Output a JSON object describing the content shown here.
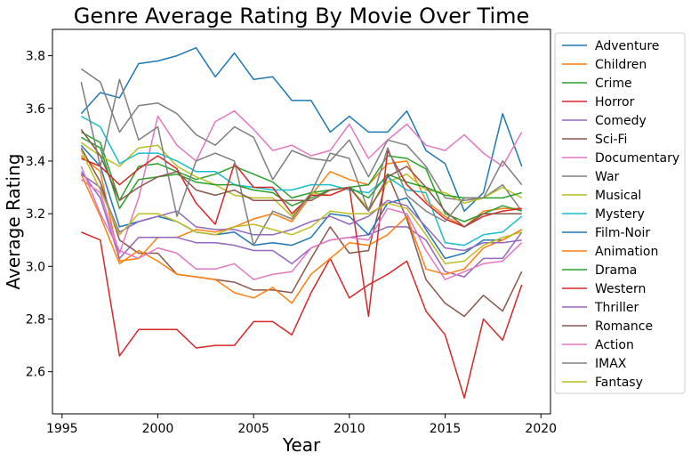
{
  "chart_data": {
    "type": "line",
    "title": "Genre Average Rating By Movie Over Time",
    "xlabel": "Year",
    "ylabel": "Average Rating",
    "xlim": [
      1994.5,
      2020.5
    ],
    "ylim": [
      2.44,
      3.9
    ],
    "xticks": [
      1995,
      2000,
      2005,
      2010,
      2015,
      2020
    ],
    "yticks": [
      2.6,
      2.8,
      3.0,
      3.2,
      3.4,
      3.6,
      3.8
    ],
    "xtick_labels": [
      "1995",
      "2000",
      "2005",
      "2010",
      "2015",
      "2020"
    ],
    "ytick_labels": [
      "2.6",
      "2.8",
      "3.0",
      "3.2",
      "3.4",
      "3.6",
      "3.8"
    ],
    "grid": false,
    "legend_position": "right-outside",
    "x": [
      1996,
      1997,
      1998,
      1999,
      2000,
      2001,
      2002,
      2003,
      2004,
      2005,
      2006,
      2007,
      2008,
      2009,
      2010,
      2011,
      2012,
      2013,
      2014,
      2015,
      2016,
      2017,
      2018,
      2019
    ],
    "series": [
      {
        "name": "Adventure",
        "color": "#1f77b4",
        "values": [
          3.58,
          3.66,
          3.64,
          3.77,
          3.78,
          3.8,
          3.83,
          3.72,
          3.81,
          3.71,
          3.72,
          3.63,
          3.63,
          3.51,
          3.57,
          3.51,
          3.51,
          3.59,
          3.44,
          3.39,
          3.21,
          3.28,
          3.58,
          3.38
        ]
      },
      {
        "name": "Children",
        "color": "#ff7f0e",
        "values": [
          3.42,
          3.36,
          3.02,
          3.03,
          3.11,
          3.11,
          3.14,
          3.13,
          3.15,
          3.18,
          3.2,
          3.17,
          3.27,
          3.36,
          3.33,
          3.31,
          3.39,
          3.4,
          3.25,
          3.19,
          3.15,
          3.21,
          3.22,
          3.22
        ]
      },
      {
        "name": "Crime",
        "color": "#2ca02c",
        "values": [
          3.51,
          3.47,
          3.25,
          3.38,
          3.39,
          3.36,
          3.33,
          3.35,
          3.38,
          3.35,
          3.32,
          3.26,
          3.28,
          3.29,
          3.3,
          3.31,
          3.42,
          3.41,
          3.37,
          3.2,
          3.17,
          3.2,
          3.23,
          3.21
        ]
      },
      {
        "name": "Horror",
        "color": "#d62728",
        "values": [
          3.13,
          3.1,
          2.66,
          2.76,
          2.76,
          2.76,
          2.69,
          2.7,
          2.7,
          2.79,
          2.79,
          2.74,
          2.9,
          3.03,
          2.88,
          2.93,
          2.97,
          3.02,
          2.83,
          2.74,
          2.5,
          2.8,
          2.72,
          2.93
        ]
      },
      {
        "name": "Comedy",
        "color": "#9467bd",
        "values": [
          3.36,
          3.26,
          3.03,
          3.11,
          3.11,
          3.11,
          3.09,
          3.09,
          3.08,
          3.06,
          3.06,
          3.01,
          3.07,
          3.1,
          3.11,
          3.12,
          3.15,
          3.15,
          3.1,
          2.98,
          2.96,
          3.03,
          3.03,
          3.13
        ]
      },
      {
        "name": "Sci-Fi",
        "color": "#8c564b",
        "values": [
          3.45,
          3.32,
          3.1,
          3.05,
          3.05,
          2.97,
          2.96,
          2.95,
          2.94,
          2.91,
          2.91,
          2.9,
          3.03,
          3.15,
          3.05,
          3.06,
          3.35,
          3.18,
          2.95,
          2.86,
          2.81,
          2.89,
          2.83,
          2.98
        ]
      },
      {
        "name": "Documentary",
        "color": "#e377c2",
        "values": [
          3.33,
          3.28,
          3.05,
          3.26,
          3.57,
          3.46,
          3.4,
          3.55,
          3.59,
          3.52,
          3.44,
          3.46,
          3.42,
          3.44,
          3.54,
          3.41,
          3.48,
          3.54,
          3.46,
          3.44,
          3.5,
          3.43,
          3.38,
          3.51
        ]
      },
      {
        "name": "War",
        "color": "#7f7f7f",
        "values": [
          3.75,
          3.7,
          3.51,
          3.61,
          3.62,
          3.58,
          3.5,
          3.46,
          3.53,
          3.49,
          3.33,
          3.44,
          3.41,
          3.4,
          3.48,
          3.34,
          3.48,
          3.46,
          3.38,
          3.26,
          3.25,
          3.26,
          3.31,
          3.21
        ]
      },
      {
        "name": "Musical",
        "color": "#bcbd22",
        "values": [
          3.47,
          3.42,
          3.38,
          3.45,
          3.46,
          3.38,
          3.34,
          3.31,
          3.27,
          3.26,
          3.26,
          3.19,
          3.28,
          3.27,
          3.3,
          3.22,
          3.32,
          3.35,
          3.29,
          3.28,
          3.24,
          3.26,
          3.3,
          3.26
        ]
      },
      {
        "name": "Mystery",
        "color": "#17becf",
        "values": [
          3.57,
          3.53,
          3.39,
          3.43,
          3.43,
          3.4,
          3.36,
          3.36,
          3.31,
          3.3,
          3.29,
          3.29,
          3.31,
          3.31,
          3.29,
          3.28,
          3.34,
          3.29,
          3.28,
          3.09,
          3.08,
          3.12,
          3.13,
          3.19
        ]
      },
      {
        "name": "Film-Noir",
        "color": "#1f77b4",
        "values": [
          3.46,
          3.38,
          3.15,
          3.17,
          3.19,
          3.17,
          3.13,
          3.12,
          3.13,
          3.08,
          3.09,
          3.08,
          3.11,
          3.2,
          3.19,
          3.12,
          3.24,
          3.26,
          3.14,
          3.03,
          3.05,
          3.1,
          3.1,
          3.14
        ]
      },
      {
        "name": "Animation",
        "color": "#ff7f0e",
        "values": [
          3.35,
          3.19,
          3.01,
          3.06,
          3.02,
          2.97,
          2.96,
          2.95,
          2.9,
          2.88,
          2.92,
          2.86,
          2.97,
          3.03,
          3.09,
          3.08,
          3.12,
          3.19,
          2.99,
          2.97,
          2.99,
          3.07,
          3.1,
          3.14
        ]
      },
      {
        "name": "Drama",
        "color": "#2ca02c",
        "values": [
          3.49,
          3.45,
          3.22,
          3.33,
          3.34,
          3.35,
          3.32,
          3.31,
          3.31,
          3.29,
          3.28,
          3.23,
          3.26,
          3.29,
          3.3,
          3.26,
          3.35,
          3.32,
          3.3,
          3.27,
          3.26,
          3.26,
          3.26,
          3.28
        ]
      },
      {
        "name": "Western",
        "color": "#d62728",
        "values": [
          3.41,
          3.38,
          3.31,
          3.37,
          3.42,
          3.37,
          3.24,
          3.16,
          3.39,
          3.3,
          3.3,
          3.2,
          3.27,
          3.27,
          3.3,
          2.81,
          3.44,
          3.31,
          3.24,
          3.18,
          3.15,
          3.19,
          3.21,
          3.22
        ]
      },
      {
        "name": "Thriller",
        "color": "#9467bd",
        "values": [
          3.35,
          3.3,
          3.13,
          3.17,
          3.19,
          3.21,
          3.15,
          3.14,
          3.14,
          3.12,
          3.12,
          3.14,
          3.17,
          3.19,
          3.16,
          3.19,
          3.25,
          3.23,
          3.15,
          3.07,
          3.06,
          3.09,
          3.09,
          3.1
        ]
      },
      {
        "name": "Romance",
        "color": "#8c564b",
        "values": [
          3.52,
          3.42,
          3.25,
          3.3,
          3.34,
          3.36,
          3.29,
          3.27,
          3.29,
          3.25,
          3.25,
          3.25,
          3.25,
          3.29,
          3.3,
          3.21,
          3.34,
          3.38,
          3.3,
          3.21,
          3.15,
          3.2,
          3.2,
          3.2
        ]
      },
      {
        "name": "Action",
        "color": "#e377c2",
        "values": [
          3.38,
          3.2,
          3.06,
          3.03,
          3.07,
          3.05,
          2.99,
          2.99,
          3.01,
          2.95,
          2.97,
          2.98,
          3.07,
          3.1,
          3.11,
          3.1,
          3.22,
          3.2,
          3.06,
          2.95,
          2.98,
          3.01,
          3.02,
          3.09
        ]
      },
      {
        "name": "IMAX",
        "color": "#7f7f7f",
        "values": [
          3.7,
          3.38,
          3.71,
          3.48,
          3.53,
          3.19,
          3.4,
          3.43,
          3.4,
          3.08,
          3.21,
          3.18,
          3.28,
          3.43,
          3.41,
          3.21,
          3.45,
          3.27,
          3.21,
          3.17,
          3.26,
          3.26,
          3.4,
          3.31
        ]
      },
      {
        "name": "Fantasy",
        "color": "#bcbd22",
        "values": [
          3.44,
          3.29,
          3.12,
          3.2,
          3.2,
          3.17,
          3.13,
          3.12,
          3.15,
          3.16,
          3.14,
          3.12,
          3.15,
          3.21,
          3.2,
          3.2,
          3.24,
          3.22,
          3.12,
          3.01,
          3.02,
          3.08,
          3.11,
          3.13
        ]
      }
    ]
  }
}
